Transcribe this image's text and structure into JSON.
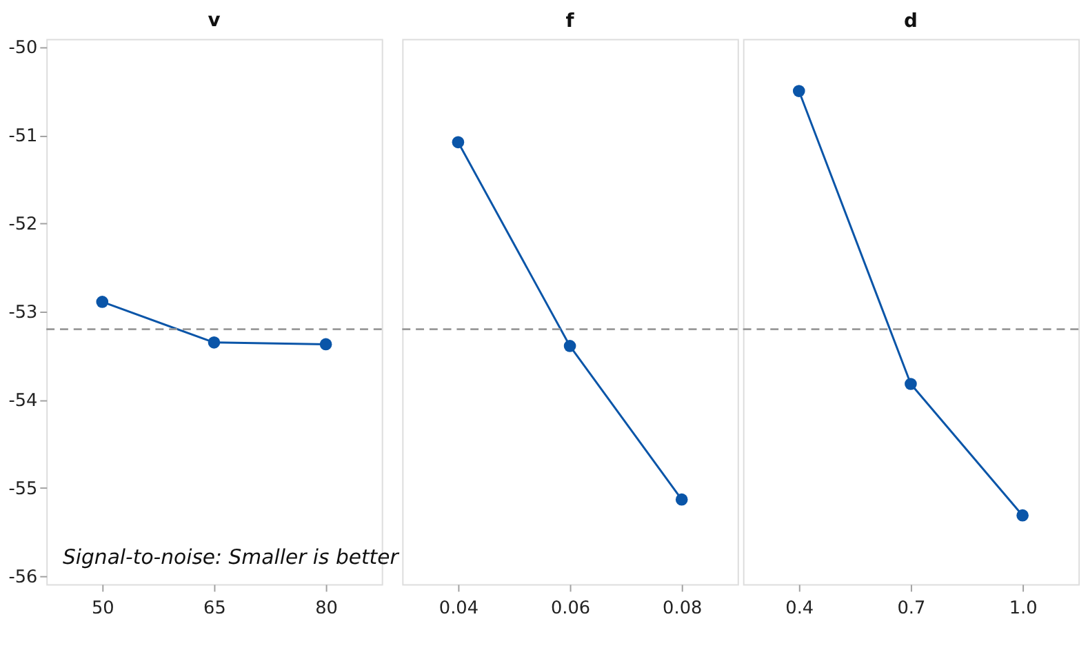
{
  "chart_data": [
    {
      "type": "line",
      "title": "v",
      "categories": [
        "50",
        "65",
        "80"
      ],
      "values": [
        -52.89,
        -53.35,
        -53.37
      ],
      "color": "#0a55a8",
      "marker": "circle",
      "line_style": "solid",
      "ylim": [
        -56.09,
        -49.91
      ],
      "yticks": [
        -56,
        -55,
        -54,
        -53,
        -52,
        -51,
        -50
      ],
      "grid": false,
      "ref_lines": [
        {
          "axis": "y",
          "value": -53.2,
          "color": "#999999",
          "line_style": "dashed"
        }
      ],
      "annotations": [
        "Signal-to-noise: Smaller is better"
      ]
    },
    {
      "type": "line",
      "title": "f",
      "categories": [
        "0.04",
        "0.06",
        "0.08"
      ],
      "values": [
        -51.08,
        -53.39,
        -55.13
      ],
      "color": "#0a55a8",
      "marker": "circle",
      "line_style": "solid",
      "ylim": [
        -56.09,
        -49.91
      ],
      "yticks": [
        -56,
        -55,
        -54,
        -53,
        -52,
        -51,
        -50
      ],
      "grid": false,
      "tick_labels": "x",
      "ref_lines": [
        {
          "axis": "y",
          "value": -53.2,
          "color": "#999999",
          "line_style": "dashed"
        }
      ]
    },
    {
      "type": "line",
      "title": "d",
      "categories": [
        "0.4",
        "0.7",
        "1.0"
      ],
      "values": [
        -50.5,
        -53.82,
        -55.31
      ],
      "color": "#0a55a8",
      "marker": "circle",
      "line_style": "solid",
      "ylim": [
        -56.09,
        -49.91
      ],
      "yticks": [
        -56,
        -55,
        -54,
        -53,
        -52,
        -51,
        -50
      ],
      "grid": false,
      "tick_labels": "x",
      "ref_lines": [
        {
          "axis": "y",
          "value": -53.2,
          "color": "#999999",
          "line_style": "dashed"
        }
      ]
    }
  ]
}
